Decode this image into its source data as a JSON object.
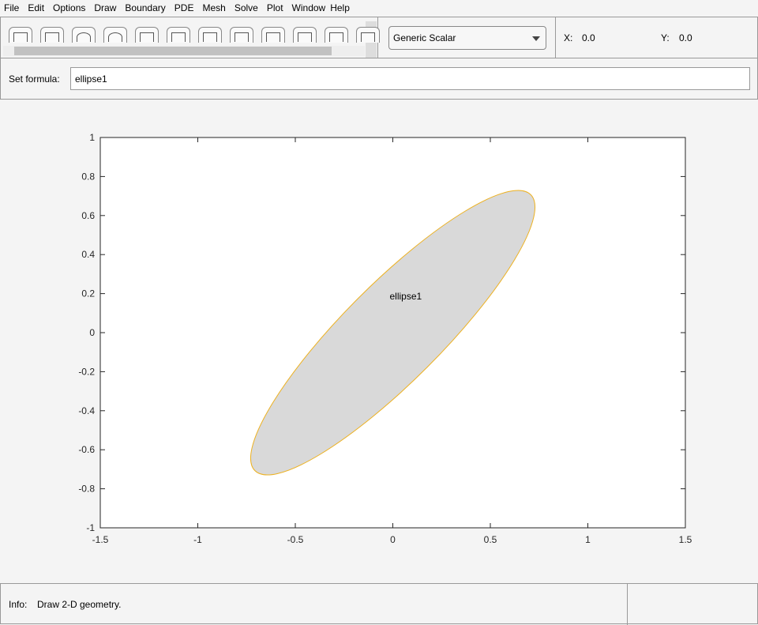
{
  "menu": [
    "File",
    "Edit",
    "Options",
    "Draw",
    "Boundary",
    "PDE",
    "Mesh",
    "Solve",
    "Plot",
    "Window",
    "Help"
  ],
  "toolbar": {
    "icons": [
      "rectangle-corner-icon",
      "rectangle-center-icon",
      "ellipse-corner-icon",
      "ellipse-center-icon",
      "polygon-icon",
      "boundary-mode-icon",
      "pde-spec-icon",
      "init-mesh-icon",
      "refine-mesh-icon",
      "solve-pde-icon",
      "plot-solution-icon",
      "zoom-icon"
    ]
  },
  "application_select": "Generic Scalar",
  "coords": {
    "x_label": "X:",
    "x_value": "0.0",
    "y_label": "Y:",
    "y_value": "0.0"
  },
  "formula": {
    "label": "Set formula:",
    "value": "ellipse1"
  },
  "plot": {
    "xticks": [
      "-1.5",
      "-1",
      "-0.5",
      "0",
      "0.5",
      "1",
      "1.5"
    ],
    "yticks": [
      "1",
      "0.8",
      "0.6",
      "0.4",
      "0.2",
      "0",
      "-0.2",
      "-0.4",
      "-0.6",
      "-0.8",
      "-1"
    ],
    "xlim": [
      -1.5,
      1.5
    ],
    "ylim": [
      -1,
      1
    ],
    "shape": {
      "label": "ellipse1",
      "type": "ellipse",
      "center": [
        0,
        0
      ],
      "semi_axes": [
        1,
        0.25
      ],
      "angle_deg": 45,
      "fill": "#d9d9d9",
      "edge": "#edb120"
    }
  },
  "status": {
    "label": "Info:",
    "text": "Draw 2-D geometry."
  }
}
